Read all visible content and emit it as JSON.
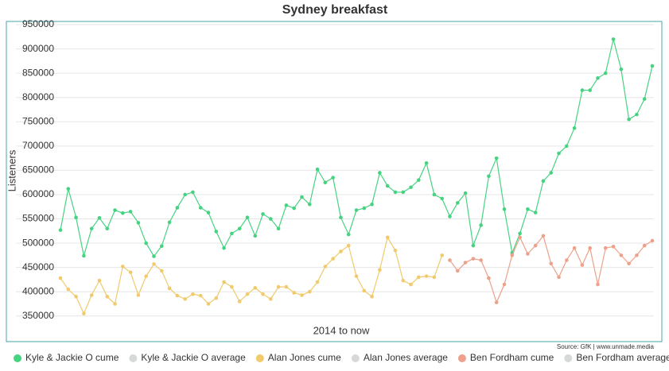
{
  "chart_data": {
    "type": "line",
    "title": "Sydney breakfast",
    "x_label": "2014 to now",
    "y_label": "Listeners",
    "source": "Source: GfK | www.unmade.media",
    "categories": [
      null,
      null,
      null,
      null,
      null,
      null,
      null,
      null,
      null,
      null,
      null,
      null,
      null,
      null,
      null,
      null,
      null,
      null,
      null,
      null,
      null,
      null,
      null,
      null,
      null,
      null,
      null,
      null,
      null,
      null,
      null,
      null,
      null,
      null,
      null,
      null,
      null,
      null,
      null,
      null,
      null,
      null,
      null,
      null,
      null,
      null,
      null,
      null,
      null,
      null,
      null,
      null,
      null,
      null,
      null,
      null,
      null,
      null,
      null,
      null,
      null,
      null,
      null,
      null,
      null,
      null,
      null,
      null,
      null,
      null,
      null,
      null,
      null,
      null,
      null,
      null,
      null
    ],
    "ylim": [
      330000,
      955000
    ],
    "yticks": [
      350000,
      400000,
      450000,
      500000,
      550000,
      600000,
      650000,
      700000,
      750000,
      800000,
      850000,
      900000,
      950000
    ],
    "grid": true,
    "legend": "bottom",
    "series": [
      {
        "name": "Kyle & Jackie O cume",
        "color": "#46d381",
        "values": [
          527000,
          612000,
          553000,
          474000,
          530000,
          552000,
          530000,
          568000,
          562000,
          565000,
          542000,
          500000,
          473000,
          494000,
          543000,
          573000,
          600000,
          605000,
          573000,
          563000,
          524000,
          490000,
          520000,
          530000,
          553000,
          515000,
          560000,
          550000,
          530000,
          578000,
          572000,
          595000,
          580000,
          652000,
          625000,
          635000,
          553000,
          518000,
          568000,
          572000,
          580000,
          645000,
          618000,
          605000,
          605000,
          615000,
          630000,
          665000,
          600000,
          592000,
          555000,
          583000,
          603000,
          495000,
          537000,
          638000,
          675000,
          570000,
          480000,
          520000,
          570000,
          563000,
          628000,
          645000,
          685000,
          700000,
          737000,
          815000,
          815000,
          840000,
          850000,
          920000,
          858000,
          755000,
          765000,
          797000,
          865000
        ]
      },
      {
        "name": "Kyle & Jackie O average",
        "color": "#d6d9d8",
        "values": [
          null,
          null,
          null,
          null,
          null,
          null,
          null,
          null,
          null,
          null,
          null,
          null,
          null,
          null,
          null,
          null,
          null,
          null,
          null,
          null,
          null,
          null,
          null,
          null,
          null,
          null,
          null,
          null,
          null,
          null,
          null,
          null,
          null,
          null,
          null,
          null,
          null,
          null,
          null,
          null,
          null,
          null,
          null,
          null,
          null,
          null,
          null,
          null,
          null,
          null,
          null,
          null,
          null,
          null,
          null,
          null,
          null,
          null,
          null,
          null,
          null,
          null,
          null,
          null,
          null,
          null,
          null,
          null,
          null,
          null,
          null,
          null,
          null,
          null,
          null,
          null,
          null
        ]
      },
      {
        "name": "Alan Jones cume",
        "color": "#f0ca6c",
        "values": [
          428000,
          405000,
          390000,
          355000,
          393000,
          423000,
          390000,
          375000,
          452000,
          440000,
          393000,
          432000,
          457000,
          443000,
          407000,
          392000,
          385000,
          395000,
          392000,
          375000,
          387000,
          420000,
          410000,
          380000,
          395000,
          408000,
          395000,
          385000,
          410000,
          410000,
          398000,
          393000,
          400000,
          420000,
          452000,
          468000,
          483000,
          495000,
          432000,
          402000,
          390000,
          445000,
          512000,
          485000,
          423000,
          415000,
          430000,
          432000,
          430000,
          475000,
          null,
          null,
          null,
          null,
          null,
          null,
          null,
          null,
          null,
          null,
          null,
          null,
          null,
          null,
          null,
          null,
          null,
          null,
          null,
          null,
          null,
          null,
          null,
          null,
          null,
          null,
          null
        ]
      },
      {
        "name": "Alan Jones average",
        "color": "#d6d9d8",
        "values": [
          null,
          null,
          null,
          null,
          null,
          null,
          null,
          null,
          null,
          null,
          null,
          null,
          null,
          null,
          null,
          null,
          null,
          null,
          null,
          null,
          null,
          null,
          null,
          null,
          null,
          null,
          null,
          null,
          null,
          null,
          null,
          null,
          null,
          null,
          null,
          null,
          null,
          null,
          null,
          null,
          null,
          null,
          null,
          null,
          null,
          null,
          null,
          null,
          null,
          null,
          null,
          null,
          null,
          null,
          null,
          null,
          null,
          null,
          null,
          null,
          null,
          null,
          null,
          null,
          null,
          null,
          null,
          null,
          null,
          null,
          null,
          null,
          null,
          null,
          null,
          null,
          null
        ]
      },
      {
        "name": "Ben Fordham cume",
        "color": "#eda08a",
        "values": [
          null,
          null,
          null,
          null,
          null,
          null,
          null,
          null,
          null,
          null,
          null,
          null,
          null,
          null,
          null,
          null,
          null,
          null,
          null,
          null,
          null,
          null,
          null,
          null,
          null,
          null,
          null,
          null,
          null,
          null,
          null,
          null,
          null,
          null,
          null,
          null,
          null,
          null,
          null,
          null,
          null,
          null,
          null,
          null,
          null,
          null,
          null,
          null,
          null,
          null,
          465000,
          443000,
          460000,
          468000,
          465000,
          428000,
          378000,
          415000,
          475000,
          512000,
          478000,
          495000,
          515000,
          458000,
          430000,
          465000,
          490000,
          455000,
          490000,
          415000,
          490000,
          493000,
          475000,
          458000,
          475000,
          495000,
          505000
        ]
      },
      {
        "name": "Ben Fordham average",
        "color": "#d6d9d8",
        "values": [
          null,
          null,
          null,
          null,
          null,
          null,
          null,
          null,
          null,
          null,
          null,
          null,
          null,
          null,
          null,
          null,
          null,
          null,
          null,
          null,
          null,
          null,
          null,
          null,
          null,
          null,
          null,
          null,
          null,
          null,
          null,
          null,
          null,
          null,
          null,
          null,
          null,
          null,
          null,
          null,
          null,
          null,
          null,
          null,
          null,
          null,
          null,
          null,
          null,
          null,
          null,
          null,
          null,
          null,
          null,
          null,
          null,
          null,
          null,
          null,
          null,
          null,
          null,
          null,
          null,
          null,
          null,
          null,
          null,
          null,
          null,
          null,
          null,
          null,
          null,
          null,
          null
        ]
      }
    ]
  }
}
